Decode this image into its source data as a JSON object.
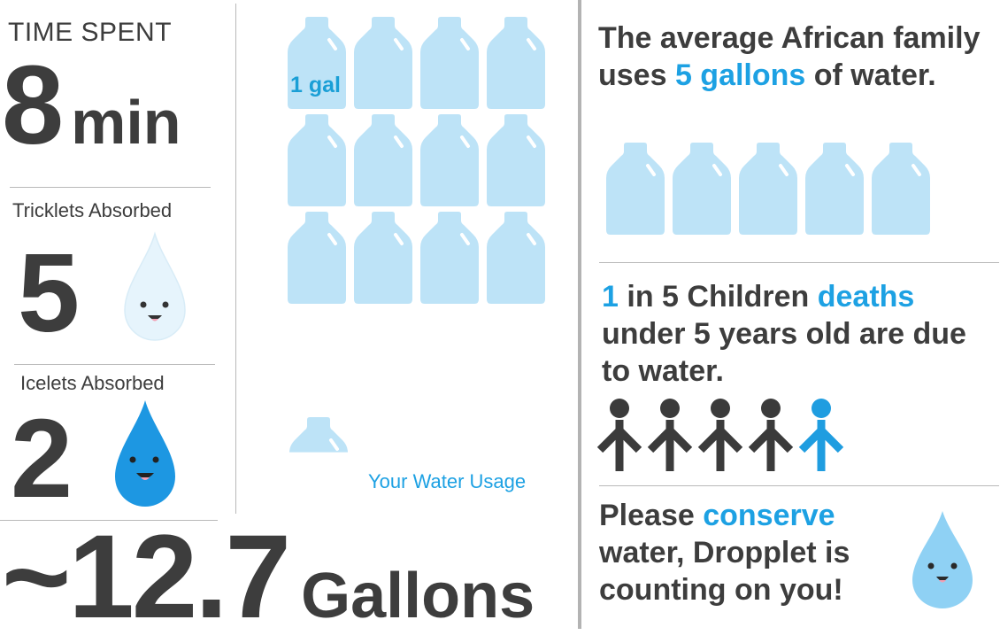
{
  "colors": {
    "text": "#3d3d3d",
    "accent": "#1da1e3",
    "jug": "#bde3f7",
    "jug_handle": "#ffffff",
    "person_dark": "#3b3b3b",
    "person_accent": "#1f9de0",
    "tricklet": "#e6f4fc",
    "icelet": "#1d97e2",
    "dropplet": "#8fd1f4",
    "divider": "#b9b9b9"
  },
  "stats": {
    "time_label": "TIME SPENT",
    "time_value": "8",
    "time_unit": "min",
    "tricklets_label": "Tricklets Absorbed",
    "tricklets_count": "5",
    "icelets_label": "Icelets Absorbed",
    "icelets_count": "2",
    "gallons_value": "~12.7",
    "gallons_unit": "Gallons"
  },
  "usage": {
    "jug_unit_label": "1 gal",
    "caption": "Your Water Usage",
    "gallons": 12.7
  },
  "facts": {
    "family": {
      "part1": "The average African family uses ",
      "highlight": "5 gallons",
      "part2": " of water.",
      "jug_count": 5
    },
    "children": {
      "highlight1": "1",
      "part1": " in 5 Children ",
      "highlight2": "deaths",
      "part2": " under 5 years old are due to water.",
      "people_total": 5,
      "people_highlighted": 1
    },
    "conserve": {
      "part1": "Please ",
      "highlight": "conserve",
      "part2": " water, Dropplet is counting on you!"
    }
  },
  "icons": {
    "jug": "water-jug-icon",
    "person": "person-icon",
    "tricklet": "tricklet-drop-icon",
    "icelet": "icelet-drop-icon",
    "dropplet": "dropplet-mascot-icon"
  }
}
